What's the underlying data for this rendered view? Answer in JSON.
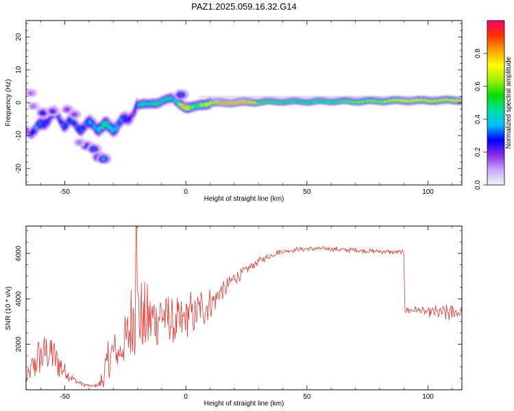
{
  "title": "PAZ1.2025.059.16.32.G14",
  "chart_data": [
    {
      "type": "heatmap",
      "xlabel": "Height of straight line (km)",
      "ylabel": "Frequency (Hz)",
      "xlim": [
        -66,
        114
      ],
      "ylim": [
        -25,
        25
      ],
      "xticks": [
        -50,
        0,
        50,
        100
      ],
      "yticks": [
        -20,
        -10,
        0,
        10,
        20
      ],
      "grid": false,
      "colorbar": {
        "label": "Normalized spectral amplitude",
        "range": [
          0,
          1
        ],
        "ticks": [
          "0.0",
          "0.2",
          "0.4",
          "0.6",
          "0.8"
        ],
        "colormap": [
          "#f5f5f5",
          "#c9a8ff",
          "#8a2be2",
          "#0000ff",
          "#00c0ff",
          "#00e0a0",
          "#00e000",
          "#a0f000",
          "#ffff00",
          "#ffa000",
          "#ff3000",
          "#ff0066"
        ]
      },
      "ridge": {
        "x": [
          -65,
          -62,
          -60,
          -58,
          -56,
          -54,
          -52,
          -50,
          -48,
          -46,
          -44,
          -42,
          -40,
          -38,
          -36,
          -34,
          -32,
          -30,
          -28,
          -26,
          -24,
          -22,
          -20,
          -18,
          -16,
          -14,
          -12,
          -10,
          -8,
          -6,
          -4,
          -2,
          0,
          2,
          4,
          6,
          8,
          10,
          14,
          20,
          26,
          30,
          40,
          50,
          60,
          70,
          80,
          90,
          100,
          110,
          114
        ],
        "freq": [
          -8,
          -8.5,
          -7,
          -5,
          -4,
          -4,
          -5,
          -6,
          -6,
          -7,
          -7,
          -7,
          -7,
          -6.5,
          -7,
          -7.5,
          -7.5,
          -7,
          -6.5,
          -6,
          -4.5,
          -2.5,
          -0.8,
          -0.5,
          -0.3,
          0,
          0,
          0.5,
          1.0,
          1.5,
          0.5,
          -0.5,
          -1.5,
          -1.5,
          -1,
          -0.5,
          -0.3,
          0,
          0,
          0.1,
          0.2,
          0.3,
          0.4,
          0.4,
          0.5,
          0.5,
          0.6,
          0.7,
          0.7,
          0.8,
          0.8
        ],
        "amplitude": [
          0.15,
          0.35,
          0.3,
          0.28,
          0.28,
          0.28,
          0.3,
          0.3,
          0.3,
          0.3,
          0.3,
          0.3,
          0.35,
          0.35,
          0.4,
          0.5,
          0.45,
          0.4,
          0.35,
          0.3,
          0.25,
          0.2,
          0.35,
          0.5,
          0.4,
          0.45,
          0.5,
          0.45,
          0.45,
          0.4,
          0.45,
          0.7,
          0.85,
          0.6,
          0.5,
          0.6,
          0.65,
          0.7,
          0.9,
          0.85,
          0.85,
          0.55,
          0.5,
          0.5,
          0.5,
          0.6,
          0.6,
          0.75,
          0.7,
          0.7,
          0.8
        ]
      },
      "blobs": [
        {
          "x": -41,
          "freq": -13,
          "amplitude": 0.3
        },
        {
          "x": -38,
          "freq": -14,
          "amplitude": 0.35
        },
        {
          "x": -36,
          "freq": -16.5,
          "amplitude": 0.35
        },
        {
          "x": -34,
          "freq": -17,
          "amplitude": 0.4
        },
        {
          "x": -64,
          "freq": 3,
          "amplitude": 0.15
        },
        {
          "x": -63,
          "freq": -1,
          "amplitude": 0.15
        },
        {
          "x": -59,
          "freq": -3,
          "amplitude": 0.3
        },
        {
          "x": -55,
          "freq": -2.5,
          "amplitude": 0.25
        },
        {
          "x": -49,
          "freq": -2,
          "amplitude": 0.2
        },
        {
          "x": -46,
          "freq": -3.5,
          "amplitude": 0.2
        },
        {
          "x": -44,
          "freq": -12,
          "amplitude": 0.15
        },
        {
          "x": -2,
          "freq": 2.5,
          "amplitude": 0.35
        }
      ]
    },
    {
      "type": "line",
      "xlabel": "Height of straight line (km)",
      "ylabel": "SNR (10 * v/v)",
      "xlim": [
        -66,
        114
      ],
      "ylim": [
        0,
        7200
      ],
      "xticks": [
        -50,
        0,
        50,
        100
      ],
      "yticks": [
        2000,
        4000,
        6000
      ],
      "grid": false,
      "series": [
        {
          "color": "#e8322a",
          "x": [
            -66,
            -62,
            -58,
            -55,
            -52,
            -50,
            -48,
            -45,
            -42,
            -40,
            -38,
            -36,
            -34,
            -32,
            -30,
            -28,
            -26,
            -24,
            -22,
            -21,
            -20,
            -18,
            -16,
            -14,
            -12,
            -10,
            -8,
            -6,
            -4,
            -2,
            0,
            2,
            4,
            6,
            8,
            10,
            12,
            14,
            16,
            18,
            20,
            22,
            24,
            26,
            28,
            30,
            32,
            34,
            36,
            38,
            40,
            45,
            50,
            55,
            60,
            65,
            70,
            75,
            80,
            85,
            88,
            90,
            90.5,
            91,
            95,
            100,
            105,
            110,
            114
          ],
          "y": [
            400,
            1200,
            1700,
            1600,
            1100,
            800,
            600,
            350,
            220,
            180,
            170,
            220,
            500,
            1200,
            1700,
            1500,
            1900,
            2300,
            3100,
            4000,
            3300,
            2800,
            3000,
            3100,
            3200,
            3300,
            3200,
            3000,
            2900,
            2800,
            3300,
            3400,
            3200,
            3700,
            3600,
            3900,
            3900,
            4300,
            4300,
            4700,
            4900,
            5000,
            5200,
            5350,
            5500,
            5650,
            5750,
            5850,
            5950,
            6050,
            6100,
            6150,
            6200,
            6200,
            6200,
            6150,
            6150,
            6100,
            6100,
            6050,
            6050,
            6000,
            3600,
            3500,
            3500,
            3400,
            3400,
            3400,
            3400
          ],
          "noise": [
            300,
            1000,
            1200,
            1100,
            800,
            400,
            250,
            150,
            100,
            80,
            80,
            150,
            800,
            1400,
            1100,
            700,
            1100,
            1500,
            2200,
            3000,
            2500,
            2000,
            1800,
            1700,
            1600,
            1700,
            1500,
            1400,
            1300,
            1400,
            1100,
            1000,
            1000,
            900,
            900,
            800,
            800,
            600,
            500,
            400,
            350,
            300,
            260,
            220,
            200,
            180,
            170,
            160,
            150,
            140,
            130,
            120,
            120,
            120,
            120,
            120,
            120,
            120,
            120,
            120,
            120,
            150,
            250,
            250,
            200,
            220,
            400,
            500,
            300
          ]
        }
      ]
    }
  ]
}
